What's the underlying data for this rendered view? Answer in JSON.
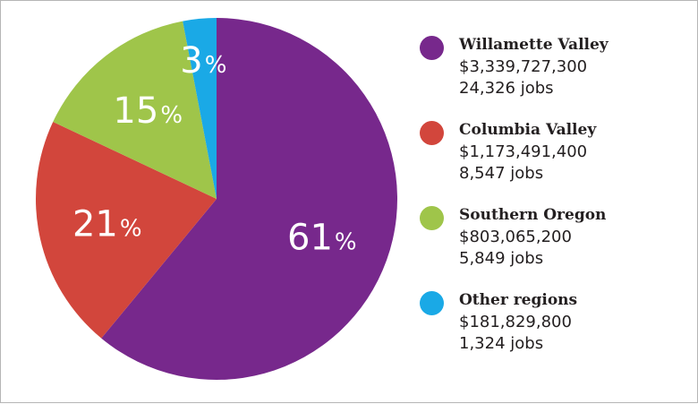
{
  "chart_data": {
    "type": "pie",
    "slices": [
      {
        "name": "Willamette Valley",
        "value": 61,
        "label": "61",
        "amount": "$3,339,727,300",
        "jobs": "24,326 jobs",
        "color": "#77288c"
      },
      {
        "name": "Columbia Valley",
        "value": 21,
        "label": "21",
        "amount": "$1,173,491,400",
        "jobs": "8,547 jobs",
        "color": "#d2463c"
      },
      {
        "name": "Southern Oregon",
        "value": 15,
        "label": "15",
        "amount": "$803,065,200",
        "jobs": "5,849 jobs",
        "color": "#9fc54a"
      },
      {
        "name": "Other regions",
        "value": 3,
        "label": "3",
        "amount": "$181,829,800",
        "jobs": "1,324 jobs",
        "color": "#1aa9e6"
      }
    ],
    "percent_symbol": "%",
    "start_angle_deg": 0,
    "direction": "clockwise",
    "legend_position": "right"
  }
}
